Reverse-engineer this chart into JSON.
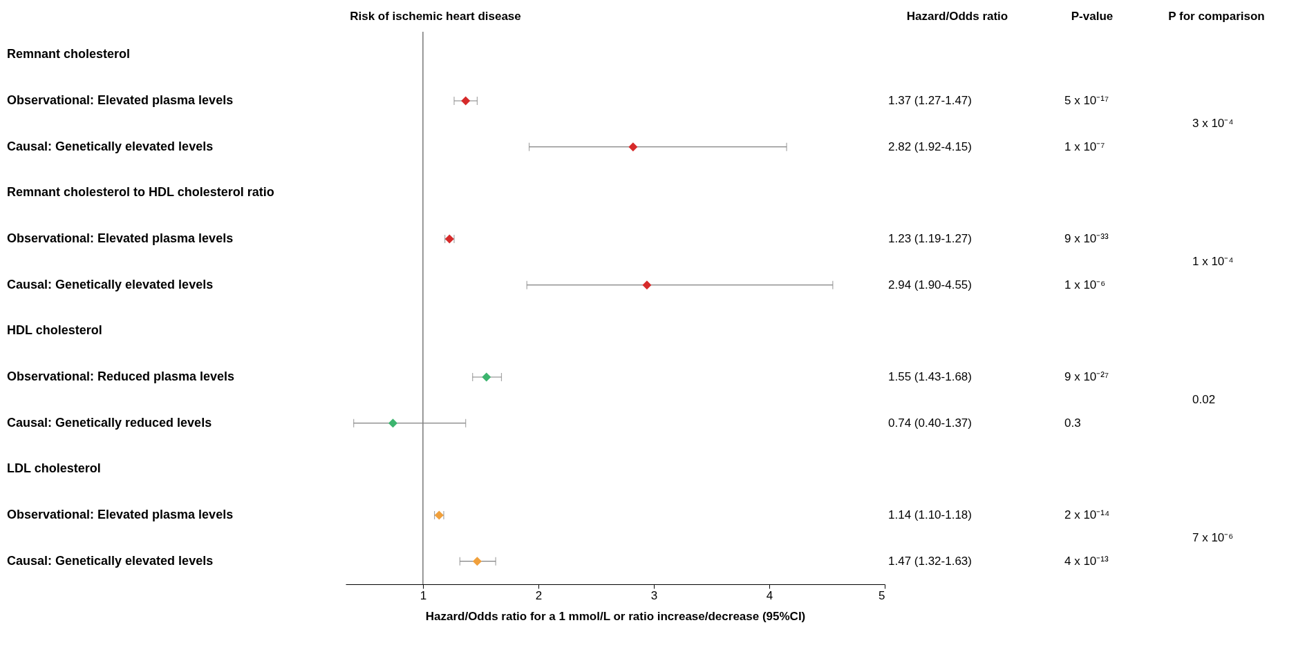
{
  "chart_data": {
    "type": "scatter",
    "orientation": "horizontal",
    "marker": "diamond",
    "title": "Risk of ischemic heart disease",
    "xlabel": "Hazard/Odds ratio for a 1 mmol/L or ratio increase/decrease (95%CI)",
    "categories": [
      "Remnant cholesterol",
      "Observational: Elevated plasma levels",
      "Causal: Genetically elevated levels",
      "Remnant cholesterol to HDL cholesterol ratio",
      "Observational: Elevated plasma levels",
      "Causal: Genetically elevated levels",
      "HDL cholesterol",
      "Observational: Reduced plasma levels",
      "Causal: Genetically reduced levels",
      "LDL cholesterol",
      "Observational: Elevated plasma levels",
      "Causal: Genetically elevated levels"
    ],
    "values": [
      null,
      1.37,
      2.82,
      null,
      1.23,
      2.94,
      null,
      1.55,
      0.74,
      null,
      1.14,
      1.47
    ],
    "errors": [
      null,
      [
        1.27,
        1.47
      ],
      [
        1.92,
        4.15
      ],
      null,
      [
        1.19,
        1.27
      ],
      [
        1.9,
        4.55
      ],
      null,
      [
        1.43,
        1.68
      ],
      [
        0.4,
        1.37
      ],
      null,
      [
        1.1,
        1.18
      ],
      [
        1.32,
        1.63
      ]
    ],
    "colors": [
      null,
      "#d62a2a",
      "#d62a2a",
      null,
      "#d62a2a",
      "#d62a2a",
      null,
      "#3cb46e",
      "#3cb46e",
      null,
      "#f0a03c",
      "#f0a03c"
    ],
    "value_labels": [
      null,
      "1.37 (1.27-1.47)",
      "2.82 (1.92-4.15)",
      null,
      "1.23 (1.19-1.27)",
      "2.94 (1.90-4.55)",
      null,
      "1.55 (1.43-1.68)",
      "0.74 (0.40-1.37)",
      null,
      "1.14 (1.10-1.18)",
      "1.47 (1.32-1.63)"
    ],
    "xlim": [
      0.33,
      5
    ],
    "xticks": [
      1,
      2,
      3,
      4,
      5
    ],
    "ref_lines": [
      {
        "axis": "x",
        "value": 1,
        "color": "#555555"
      }
    ],
    "annotations": [
      "Hazard/Odds ratio",
      "P-value",
      "P for comparison",
      "5 x 10⁻¹⁷",
      "1 x 10⁻⁷",
      "9 x 10⁻³³",
      "1 x 10⁻⁶",
      "9 x 10⁻²⁷",
      "0.3",
      "2 x 10⁻¹⁴",
      "4 x 10⁻¹³",
      "3 x 10⁻⁴",
      "1 x 10⁻⁴",
      "0.02",
      "7 x 10⁻⁶"
    ]
  }
}
